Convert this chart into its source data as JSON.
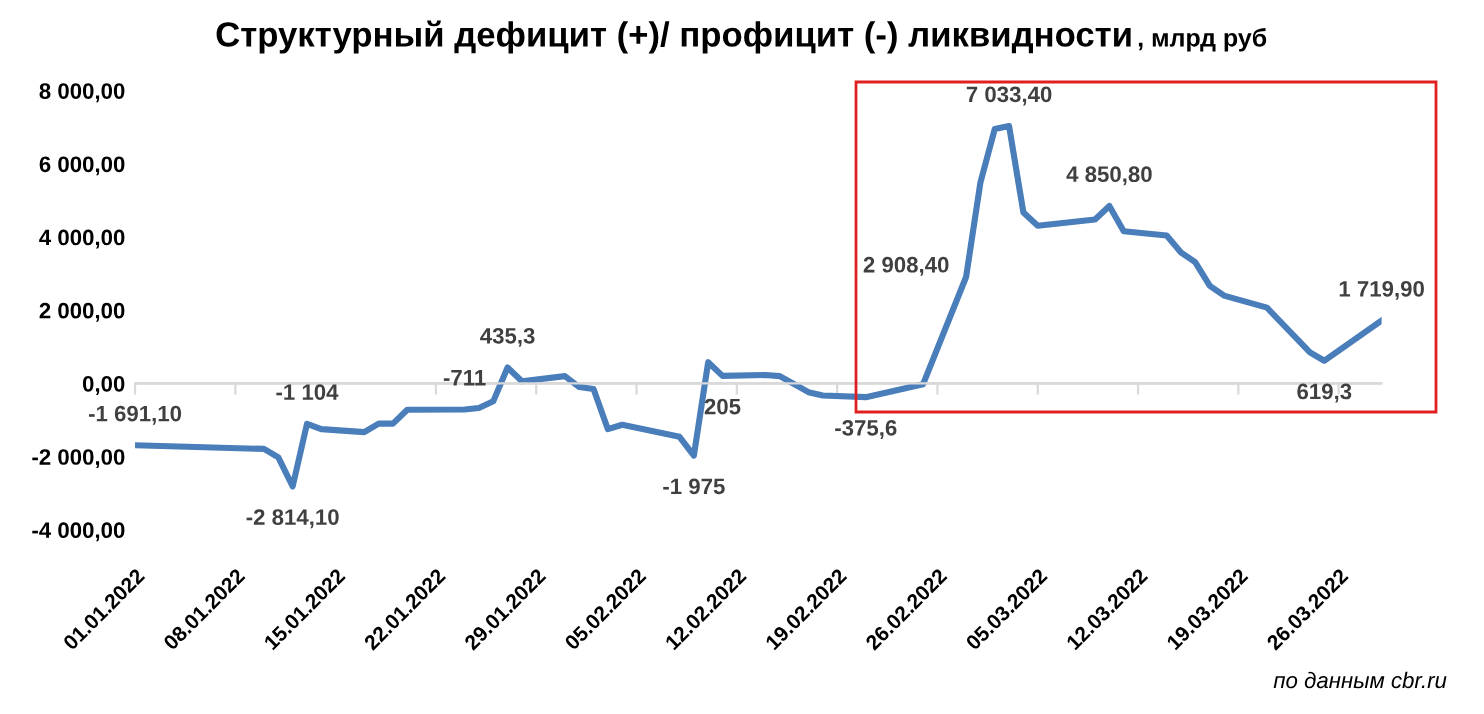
{
  "chart_data": {
    "type": "line",
    "title": "Структурный дефицит (+)/ профицит (-) ликвидности",
    "subtitle": ", млрд руб",
    "x": [
      "2022-01-01",
      "2022-01-10",
      "2022-01-11",
      "2022-01-12",
      "2022-01-13",
      "2022-01-14",
      "2022-01-17",
      "2022-01-18",
      "2022-01-19",
      "2022-01-20",
      "2022-01-24",
      "2022-01-25",
      "2022-01-26",
      "2022-01-27",
      "2022-01-28",
      "2022-01-31",
      "2022-02-01",
      "2022-02-02",
      "2022-02-03",
      "2022-02-04",
      "2022-02-08",
      "2022-02-09",
      "2022-02-10",
      "2022-02-11",
      "2022-02-14",
      "2022-02-15",
      "2022-02-17",
      "2022-02-18",
      "2022-02-21",
      "2022-02-25",
      "2022-02-28",
      "2022-03-01",
      "2022-03-02",
      "2022-03-03",
      "2022-03-04",
      "2022-03-05",
      "2022-03-09",
      "2022-03-10",
      "2022-03-11",
      "2022-03-14",
      "2022-03-15",
      "2022-03-16",
      "2022-03-17",
      "2022-03-18",
      "2022-03-21",
      "2022-03-24",
      "2022-03-25",
      "2022-03-29"
    ],
    "series": [
      {
        "color": "#4a7ebb",
        "values": [
          -1691.1,
          -1790,
          -2020,
          -2814.1,
          -1104,
          -1250,
          -1330,
          -1100,
          -1100,
          -720,
          -711,
          -670,
          -490,
          435.3,
          60,
          200,
          -100,
          -150,
          -1250,
          -1130,
          -1460,
          -1975,
          580,
          205,
          230,
          200,
          -240,
          -330,
          -375.6,
          -20,
          2908.4,
          5490,
          6950,
          7033.4,
          4670,
          4310,
          4480,
          4850.8,
          4160,
          4040,
          3580,
          3310,
          2670,
          2400,
          2070,
          850,
          619.3,
          1719.9
        ],
        "value_labels": [
          "-1 691,10",
          null,
          null,
          "-2 814,10",
          "-1 104",
          null,
          null,
          null,
          null,
          null,
          "-711",
          null,
          null,
          "435,3",
          null,
          null,
          null,
          null,
          null,
          null,
          null,
          "-1 975",
          null,
          "205",
          null,
          null,
          null,
          null,
          "-375,6",
          null,
          "2 908,40",
          null,
          null,
          "7 033,40",
          null,
          null,
          null,
          "4 850,80",
          null,
          null,
          null,
          null,
          null,
          null,
          null,
          null,
          "619,3",
          "1 719,90"
        ]
      }
    ],
    "xlim": [
      "2022-01-01",
      "2022-03-29"
    ],
    "xticks": [
      {
        "value": "2022-01-01",
        "label": "01.01.2022"
      },
      {
        "value": "2022-01-08",
        "label": "08.01.2022"
      },
      {
        "value": "2022-01-15",
        "label": "15.01.2022"
      },
      {
        "value": "2022-01-22",
        "label": "22.01.2022"
      },
      {
        "value": "2022-01-29",
        "label": "29.01.2022"
      },
      {
        "value": "2022-02-05",
        "label": "05.02.2022"
      },
      {
        "value": "2022-02-12",
        "label": "12.02.2022"
      },
      {
        "value": "2022-02-19",
        "label": "19.02.2022"
      },
      {
        "value": "2022-02-26",
        "label": "26.02.2022"
      },
      {
        "value": "2022-03-05",
        "label": "05.03.2022"
      },
      {
        "value": "2022-03-12",
        "label": "12.03.2022"
      },
      {
        "value": "2022-03-19",
        "label": "19.03.2022"
      },
      {
        "value": "2022-03-26",
        "label": "26.03.2022"
      }
    ],
    "ylim": [
      -4000,
      8000
    ],
    "yticks": [
      {
        "value": -4000,
        "label": "-4 000,00"
      },
      {
        "value": -2000,
        "label": "-2 000,00"
      },
      {
        "value": 0,
        "label": "0,00"
      },
      {
        "value": 2000,
        "label": "2 000,00"
      },
      {
        "value": 4000,
        "label": "4 000,00"
      },
      {
        "value": 6000,
        "label": "6 000,00"
      },
      {
        "value": 8000,
        "label": "8 000,00"
      }
    ],
    "ref_lines": [
      {
        "axis": "y",
        "value": 0,
        "color": "#d9d9d9"
      }
    ],
    "marker": "none",
    "line_style": "solid",
    "grid": false,
    "legend": false,
    "annotations": [
      "по данным cbr.ru"
    ]
  }
}
